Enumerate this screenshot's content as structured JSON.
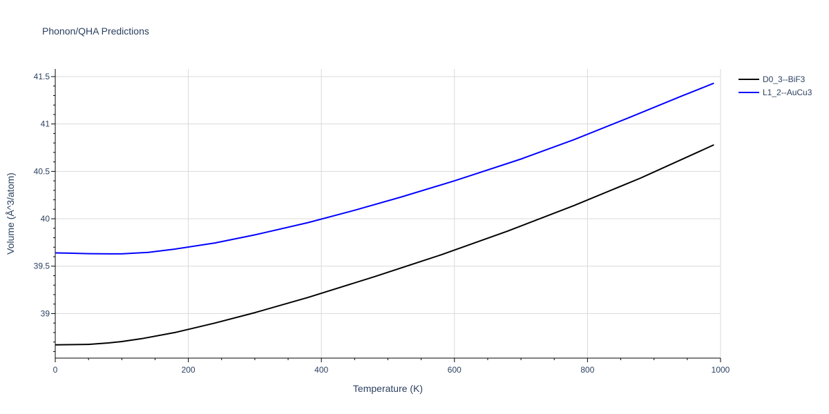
{
  "chart_data": {
    "type": "line",
    "title": "Phonon/QHA Predictions",
    "xlabel": "Temperature (K)",
    "ylabel": "Volume (Å^3/atom)",
    "xlim": [
      0,
      1000
    ],
    "ylim": [
      38.53,
      41.58
    ],
    "x_ticks": [
      0,
      200,
      400,
      600,
      800,
      1000
    ],
    "x_tick_labels": [
      "0",
      "200",
      "400",
      "600",
      "800",
      "1000"
    ],
    "y_ticks": [
      39,
      39.5,
      40,
      40.5,
      41,
      41.5
    ],
    "y_tick_labels": [
      "39",
      "39.5",
      "40",
      "40.5",
      "41",
      "41.5"
    ],
    "grid": true,
    "legend_position": "top-right outside",
    "series": [
      {
        "name": "D0_3--BiF3",
        "color": "#000000",
        "x": [
          0,
          20,
          50,
          80,
          100,
          130,
          180,
          240,
          300,
          380,
          480,
          580,
          680,
          780,
          880,
          990
        ],
        "y": [
          38.67,
          38.672,
          38.675,
          38.69,
          38.705,
          38.735,
          38.8,
          38.9,
          39.01,
          39.17,
          39.39,
          39.62,
          39.87,
          40.14,
          40.43,
          40.78
        ]
      },
      {
        "name": "L1_2--AuCu3",
        "color": "#0000ff",
        "x": [
          0,
          20,
          50,
          80,
          100,
          140,
          180,
          240,
          300,
          380,
          450,
          520,
          600,
          700,
          780,
          860,
          940,
          990
        ],
        "y": [
          39.64,
          39.637,
          39.632,
          39.63,
          39.63,
          39.645,
          39.68,
          39.745,
          39.83,
          39.96,
          40.09,
          40.23,
          40.4,
          40.63,
          40.835,
          41.06,
          41.29,
          41.43
        ]
      }
    ]
  }
}
